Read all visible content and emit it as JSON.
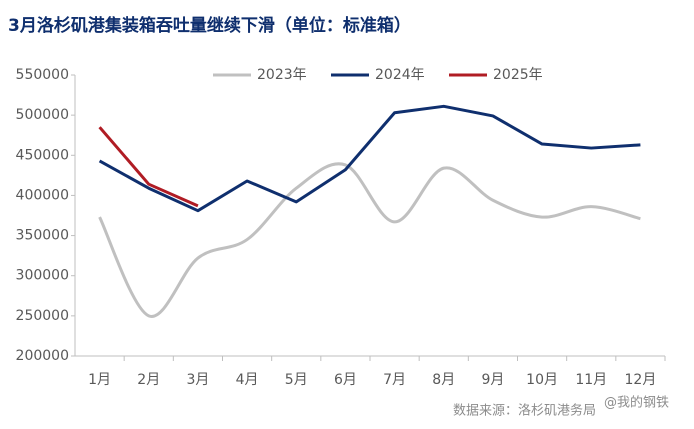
{
  "chart_data": {
    "type": "line",
    "title": "3月洛杉矶港集装箱吞吐量继续下滑（单位：标准箱）",
    "categories": [
      "1月",
      "2月",
      "3月",
      "4月",
      "5月",
      "6月",
      "7月",
      "8月",
      "9月",
      "10月",
      "11月",
      "12月"
    ],
    "series": [
      {
        "name": "2023年",
        "color": "#c0c0c0",
        "smooth": true,
        "values": [
          373000,
          250000,
          322000,
          345000,
          409000,
          438000,
          367000,
          434000,
          394000,
          373000,
          386000,
          371000
        ]
      },
      {
        "name": "2024年",
        "color": "#0f2f6e",
        "values": [
          443000,
          409000,
          381000,
          418000,
          392000,
          432000,
          503000,
          511000,
          499000,
          464000,
          459000,
          463000
        ]
      },
      {
        "name": "2025年",
        "color": "#b01c24",
        "values": [
          485000,
          414000,
          387000,
          null,
          null,
          null,
          null,
          null,
          null,
          null,
          null,
          null
        ]
      }
    ],
    "ylim": [
      200000,
      550000
    ],
    "yticks": [
      200000,
      250000,
      300000,
      350000,
      400000,
      450000,
      500000,
      550000
    ],
    "grid": false,
    "legend": "top",
    "source": "数据来源：洛杉矶港务局",
    "watermark": "@我的钢铁"
  }
}
